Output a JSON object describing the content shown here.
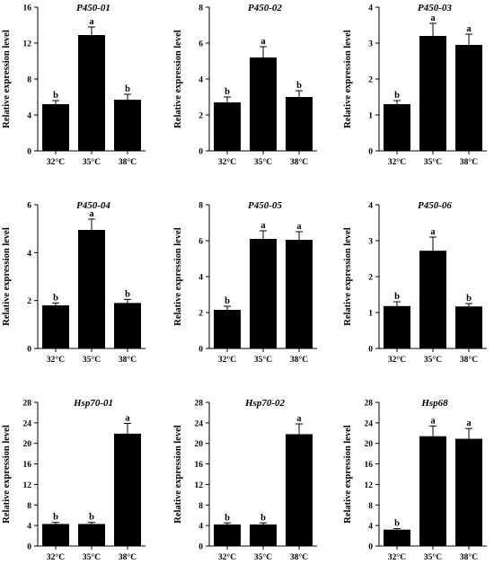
{
  "figure": {
    "y_axis_label": "Relative  expression level"
  },
  "chart_data": [
    {
      "type": "bar",
      "title": "P450-01",
      "categories": [
        "32°C",
        "35°C",
        "38°C"
      ],
      "series": [
        {
          "values": [
            5.2,
            12.9,
            5.7
          ],
          "error": [
            0.4,
            0.9,
            0.6
          ],
          "letters": [
            "b",
            "a",
            "b"
          ]
        }
      ],
      "ylabel": "Relative  expression level",
      "ylim": [
        0,
        16
      ],
      "yticks": [
        0,
        4,
        8,
        12,
        16
      ],
      "grid": false
    },
    {
      "type": "bar",
      "title": "P450-02",
      "categories": [
        "32°C",
        "35°C",
        "38°C"
      ],
      "series": [
        {
          "values": [
            2.7,
            5.2,
            3.0
          ],
          "error": [
            0.3,
            0.6,
            0.35
          ],
          "letters": [
            "b",
            "a",
            "b"
          ]
        }
      ],
      "ylabel": "Relative  expression level",
      "ylim": [
        0,
        8
      ],
      "yticks": [
        0,
        2,
        4,
        6,
        8
      ],
      "grid": false
    },
    {
      "type": "bar",
      "title": "P450-03",
      "categories": [
        "32°C",
        "35°C",
        "38°C"
      ],
      "series": [
        {
          "values": [
            1.3,
            3.2,
            2.95
          ],
          "error": [
            0.1,
            0.35,
            0.3
          ],
          "letters": [
            "b",
            "a",
            "a"
          ]
        }
      ],
      "ylabel": "Relative  expression level",
      "ylim": [
        0,
        4
      ],
      "yticks": [
        0,
        1,
        2,
        3,
        4
      ],
      "grid": false
    },
    {
      "type": "bar",
      "title": "P450-04",
      "categories": [
        "32°C",
        "35°C",
        "38°C"
      ],
      "series": [
        {
          "values": [
            1.8,
            4.95,
            1.9
          ],
          "error": [
            0.1,
            0.45,
            0.15
          ],
          "letters": [
            "b",
            "a",
            "b"
          ]
        }
      ],
      "ylabel": "Relative  expression level",
      "ylim": [
        0,
        6
      ],
      "yticks": [
        0,
        2,
        4,
        6
      ],
      "grid": false
    },
    {
      "type": "bar",
      "title": "P450-05",
      "categories": [
        "32°C",
        "35°C",
        "38°C"
      ],
      "series": [
        {
          "values": [
            2.15,
            6.1,
            6.05
          ],
          "error": [
            0.2,
            0.45,
            0.45
          ],
          "letters": [
            "b",
            "a",
            "a"
          ]
        }
      ],
      "ylabel": "Relative  expression level",
      "ylim": [
        0,
        8
      ],
      "yticks": [
        0,
        2,
        4,
        6,
        8
      ],
      "grid": false
    },
    {
      "type": "bar",
      "title": "P450-06",
      "categories": [
        "32°C",
        "35°C",
        "38°C"
      ],
      "series": [
        {
          "values": [
            1.18,
            2.72,
            1.17
          ],
          "error": [
            0.12,
            0.38,
            0.08
          ],
          "letters": [
            "b",
            "a",
            "b"
          ]
        }
      ],
      "ylabel": "Relative  expression level",
      "ylim": [
        0,
        4
      ],
      "yticks": [
        0,
        1,
        2,
        3,
        4
      ],
      "grid": false
    },
    {
      "type": "bar",
      "title": "Hsp70-01",
      "categories": [
        "32°C",
        "35°C",
        "38°C"
      ],
      "series": [
        {
          "values": [
            4.3,
            4.3,
            21.9
          ],
          "error": [
            0.3,
            0.3,
            2.0
          ],
          "letters": [
            "b",
            "b",
            "a"
          ]
        }
      ],
      "ylabel": "Relative  expression level",
      "ylim": [
        0,
        28
      ],
      "yticks": [
        0,
        4,
        8,
        12,
        16,
        20,
        24,
        28
      ],
      "grid": false
    },
    {
      "type": "bar",
      "title": "Hsp70-02",
      "categories": [
        "32°C",
        "35°C",
        "38°C"
      ],
      "series": [
        {
          "values": [
            4.2,
            4.2,
            21.8
          ],
          "error": [
            0.3,
            0.3,
            2.0
          ],
          "letters": [
            "b",
            "b",
            "a"
          ]
        }
      ],
      "ylabel": "Relative  expression level",
      "ylim": [
        0,
        28
      ],
      "yticks": [
        0,
        4,
        8,
        12,
        16,
        20,
        24,
        28
      ],
      "grid": false
    },
    {
      "type": "bar",
      "title": "Hsp68",
      "categories": [
        "32°C",
        "35°C",
        "38°C"
      ],
      "series": [
        {
          "values": [
            3.2,
            21.4,
            20.9
          ],
          "error": [
            0.2,
            2.0,
            2.0
          ],
          "letters": [
            "b",
            "a",
            "a"
          ]
        }
      ],
      "ylabel": "Relative  expression level",
      "ylim": [
        0,
        28
      ],
      "yticks": [
        0,
        4,
        8,
        12,
        16,
        20,
        24,
        28
      ],
      "grid": false
    }
  ]
}
